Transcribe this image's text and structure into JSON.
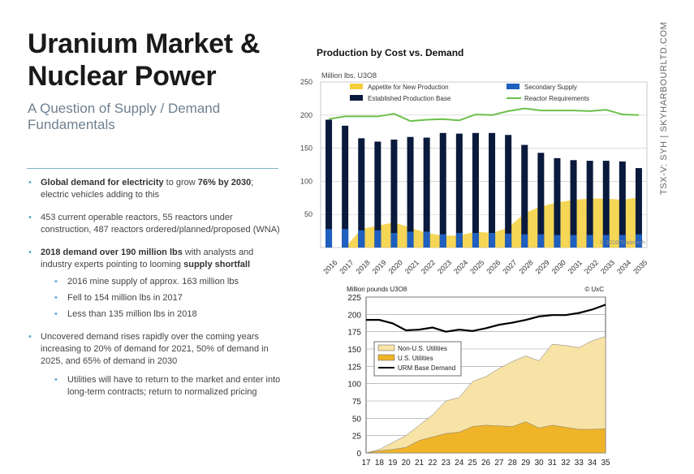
{
  "slide": {
    "title": "Uranium Market & Nuclear Power",
    "subtitle": "A Question of Supply / Demand Fundamentals",
    "sidebar_text": "TSX-V: SYH  |  SKYHARBOURLTD.COM",
    "bullets": [
      {
        "strong1": "Global demand for electricity",
        "t1": " to grow ",
        "strong2": "76% by 2030",
        "t2": "; electric vehicles adding to this"
      },
      {
        "strong1": "",
        "t1": "453 current operable reactors, 55 reactors under construction, 487 reactors ordered/planned/proposed (WNA)",
        "strong2": "",
        "t2": ""
      },
      {
        "strong1": "2018 demand over 190 million lbs",
        "t1": " with analysts and industry experts pointing to looming ",
        "strong2": "supply shortfall",
        "t2": ""
      },
      {
        "strong1": "",
        "t1": "Uncovered demand rises rapidly over the coming years increasing to 20% of demand for 2021, 50% of demand in 2025, and 65% of demand in 2030",
        "strong2": "",
        "t2": ""
      }
    ],
    "sub_bullets_a": [
      "2016 mine supply of approx. 163 million lbs",
      "Fell to 154 million lbs in 2017",
      "Less than 135 million lbs in 2018"
    ],
    "sub_bullets_b": [
      "Utilities will have to return to the market and enter into long-term contracts; return to normalized pricing"
    ],
    "colors": {
      "accent": "#5aa9c9",
      "navy": "#0a1a3c",
      "blue": "#1f5fbf",
      "yellow": "#f5cf3a",
      "green": "#6cc04a"
    }
  },
  "chart_data": [
    {
      "type": "bar",
      "title": "Production by Cost vs. Demand",
      "ylabel": "Million lbs. U3O8",
      "watermark": "© 2018 Tradetech",
      "ylim": [
        0,
        250
      ],
      "yticks": [
        50,
        100,
        150,
        200,
        250
      ],
      "categories": [
        "2016",
        "2017",
        "2018",
        "2019",
        "2020",
        "2021",
        "2022",
        "2023",
        "2024",
        "2025",
        "2026",
        "2027",
        "2028",
        "2029",
        "2030",
        "2031",
        "2032",
        "2033",
        "2034",
        "2035"
      ],
      "series": [
        {
          "name": "Established Production Base",
          "type": "bar",
          "color": "#0a1a3c",
          "values": [
            193,
            184,
            165,
            160,
            163,
            167,
            166,
            173,
            172,
            173,
            173,
            170,
            155,
            143,
            135,
            132,
            131,
            131,
            130,
            120
          ]
        },
        {
          "name": "Secondary Supply",
          "type": "bar",
          "color": "#1f5fbf",
          "values": [
            28,
            28,
            26,
            26,
            22,
            24,
            24,
            20,
            22,
            22,
            22,
            21,
            20,
            20,
            19,
            19,
            19,
            19,
            19,
            20
          ]
        },
        {
          "name": "Appetite for New Production",
          "type": "area",
          "color": "#f5cf3a",
          "values": [
            0,
            0,
            28,
            33,
            38,
            30,
            22,
            18,
            18,
            24,
            22,
            30,
            52,
            62,
            68,
            72,
            74,
            74,
            72,
            76
          ]
        },
        {
          "name": "Reactor Requirements",
          "type": "line",
          "color": "#6cc04a",
          "values": [
            194,
            198,
            198,
            198,
            202,
            191,
            193,
            194,
            192,
            201,
            200,
            206,
            210,
            207,
            207,
            207,
            206,
            208,
            201,
            200
          ]
        }
      ]
    },
    {
      "type": "area",
      "ylabel": "Million pounds U3O8",
      "copyright": "© UxC",
      "ylim": [
        0,
        225
      ],
      "yticks": [
        0,
        25,
        50,
        75,
        100,
        125,
        150,
        175,
        200,
        225
      ],
      "x": [
        "17",
        "18",
        "19",
        "20",
        "21",
        "22",
        "23",
        "24",
        "25",
        "26",
        "27",
        "28",
        "29",
        "30",
        "31",
        "32",
        "33",
        "34",
        "35"
      ],
      "series": [
        {
          "name": "Non-U.S. Utilities",
          "type": "area",
          "color": "#f8e3a6",
          "values": [
            0,
            5,
            15,
            25,
            40,
            55,
            75,
            80,
            103,
            110,
            122,
            132,
            140,
            133,
            157,
            155,
            152,
            162,
            168
          ]
        },
        {
          "name": "U.S. Utilities",
          "type": "area",
          "color": "#f0b429",
          "values": [
            0,
            3,
            5,
            8,
            18,
            23,
            28,
            30,
            38,
            40,
            39,
            38,
            45,
            36,
            40,
            37,
            34,
            34,
            35
          ]
        },
        {
          "name": "URM Base Demand",
          "type": "line",
          "color": "#000000",
          "values": [
            192,
            192,
            187,
            177,
            178,
            181,
            175,
            178,
            176,
            180,
            185,
            188,
            192,
            197,
            199,
            199,
            202,
            207,
            214
          ]
        }
      ]
    }
  ]
}
